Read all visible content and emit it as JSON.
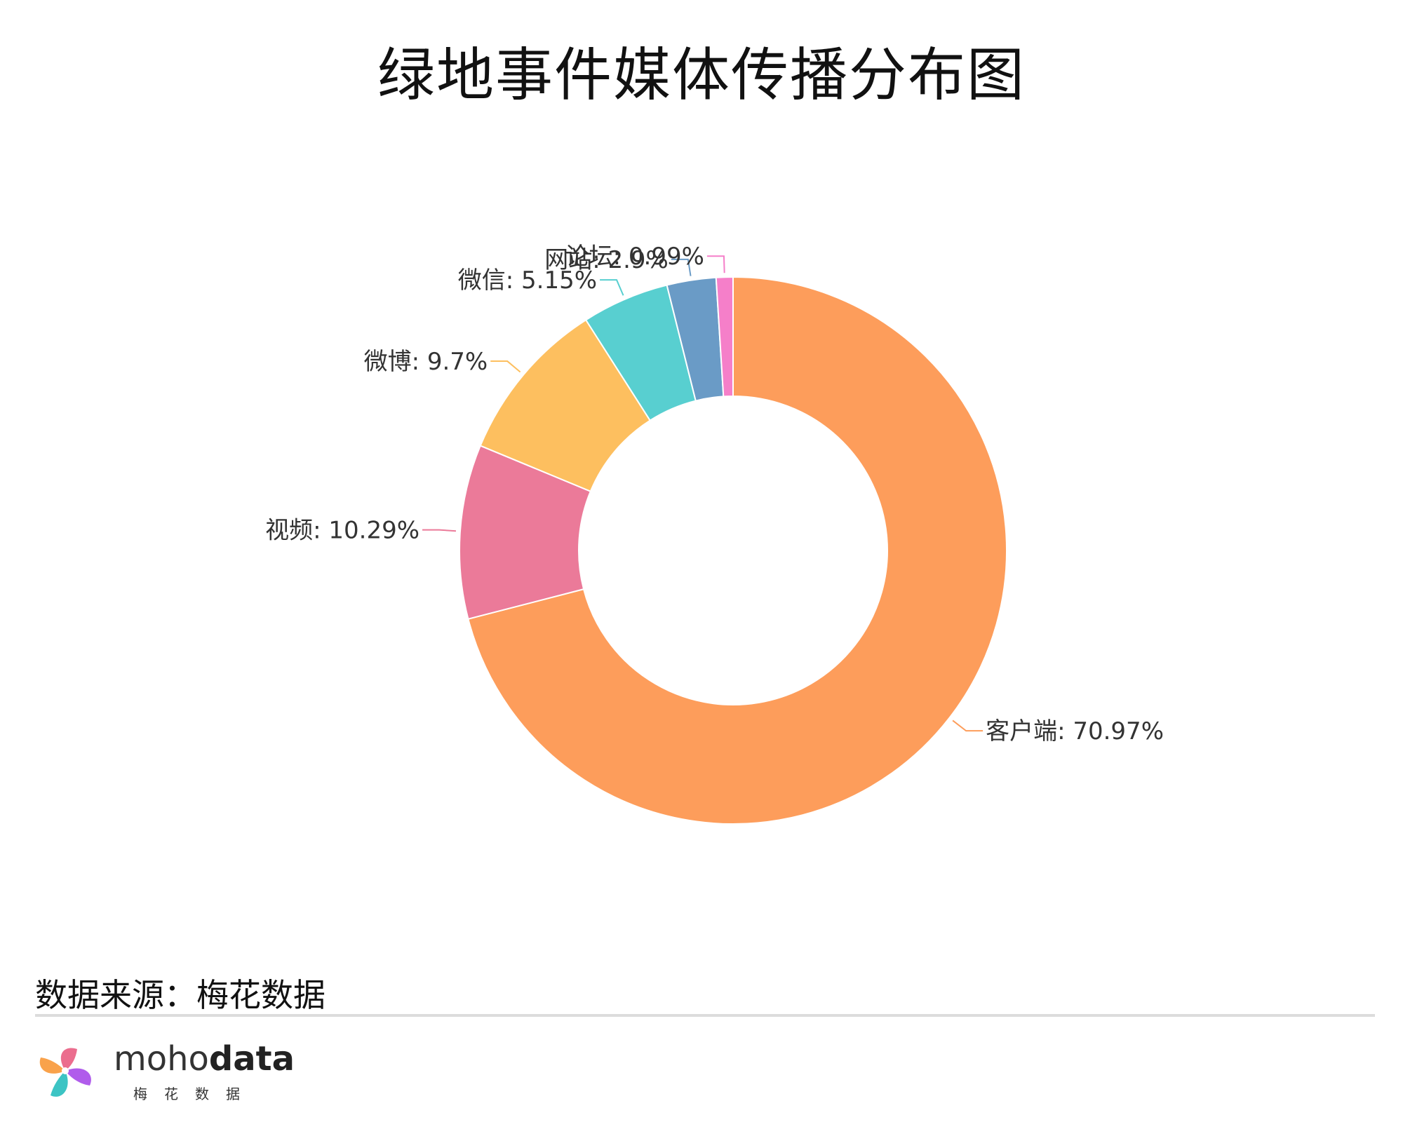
{
  "title": "绿地事件媒体传播分布图",
  "chart_data": {
    "type": "pie",
    "variant": "donut",
    "title": "绿地事件媒体传播分布图",
    "slices": [
      {
        "name": "客户端",
        "value": 70.97,
        "label": "客户端: 70.97%",
        "color": "#FD9D5B"
      },
      {
        "name": "视频",
        "value": 10.29,
        "label": "视频: 10.29%",
        "color": "#EB7A99"
      },
      {
        "name": "微博",
        "value": 9.7,
        "label": "微博: 9.7%",
        "color": "#FDBF5F"
      },
      {
        "name": "微信",
        "value": 5.15,
        "label": "微信: 5.15%",
        "color": "#58CFD0"
      },
      {
        "name": "网站",
        "value": 2.9,
        "label": "网站: 2.9%",
        "color": "#6A9BC6"
      },
      {
        "name": "论坛",
        "value": 0.99,
        "label": "论坛: 0.99%",
        "color": "#F57FC9"
      }
    ]
  },
  "source": "数据来源：梅花数据",
  "logo": {
    "brand_light": "moho",
    "brand_bold": "data",
    "subtitle": "梅花数据"
  }
}
